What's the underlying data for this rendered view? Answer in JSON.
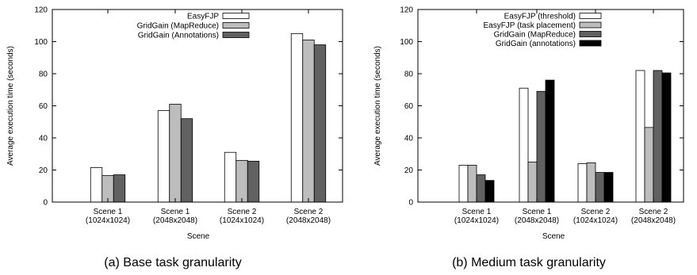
{
  "chart_data": [
    {
      "type": "bar",
      "caption": "(a) Base task granularity",
      "xlabel": "Scene",
      "ylabel": "Average execution time (seconds)",
      "ylim": [
        0,
        120
      ],
      "yticks": [
        0,
        20,
        40,
        60,
        80,
        100,
        120
      ],
      "grid": false,
      "legend_position": "top-right",
      "categories": [
        {
          "line1": "Scene 1",
          "line2": "(1024x1024)"
        },
        {
          "line1": "Scene 1",
          "line2": "(2048x2048)"
        },
        {
          "line1": "Scene 2",
          "line2": "(1024x1024)"
        },
        {
          "line1": "Scene 2",
          "line2": "(2048x2048)"
        }
      ],
      "series": [
        {
          "name": "EasyFJP",
          "color": "#ffffff",
          "values": [
            21.5,
            57,
            31,
            105
          ]
        },
        {
          "name": "GridGain (MapReduce)",
          "color": "#bdbdbd",
          "values": [
            16.5,
            61,
            26,
            101
          ]
        },
        {
          "name": "GridGain (Annotations)",
          "color": "#616161",
          "values": [
            17,
            52,
            25.5,
            98
          ]
        }
      ]
    },
    {
      "type": "bar",
      "caption": "(b) Medium task granularity",
      "xlabel": "Scene",
      "ylabel": "Average execution time (seconds)",
      "ylim": [
        0,
        120
      ],
      "yticks": [
        0,
        20,
        40,
        60,
        80,
        100,
        120
      ],
      "grid": false,
      "legend_position": "top-right",
      "categories": [
        {
          "line1": "Scene 1",
          "line2": "(1024x1024)"
        },
        {
          "line1": "Scene 1",
          "line2": "(2048x2048)"
        },
        {
          "line1": "Scene 2",
          "line2": "(1024x1024)"
        },
        {
          "line1": "Scene 2",
          "line2": "(2048x2048)"
        }
      ],
      "series": [
        {
          "name": "EasyFJP (threshold)",
          "color": "#ffffff",
          "values": [
            23,
            71,
            24,
            82
          ]
        },
        {
          "name": "EasyFJP (task placement)",
          "color": "#bdbdbd",
          "values": [
            23,
            25,
            24.5,
            46.5
          ]
        },
        {
          "name": "GridGain (MapReduce)",
          "color": "#616161",
          "values": [
            17,
            69,
            18.5,
            82
          ]
        },
        {
          "name": "GridGain (annotations)",
          "color": "#000000",
          "values": [
            13.5,
            76,
            18.5,
            80.5
          ]
        }
      ]
    }
  ]
}
